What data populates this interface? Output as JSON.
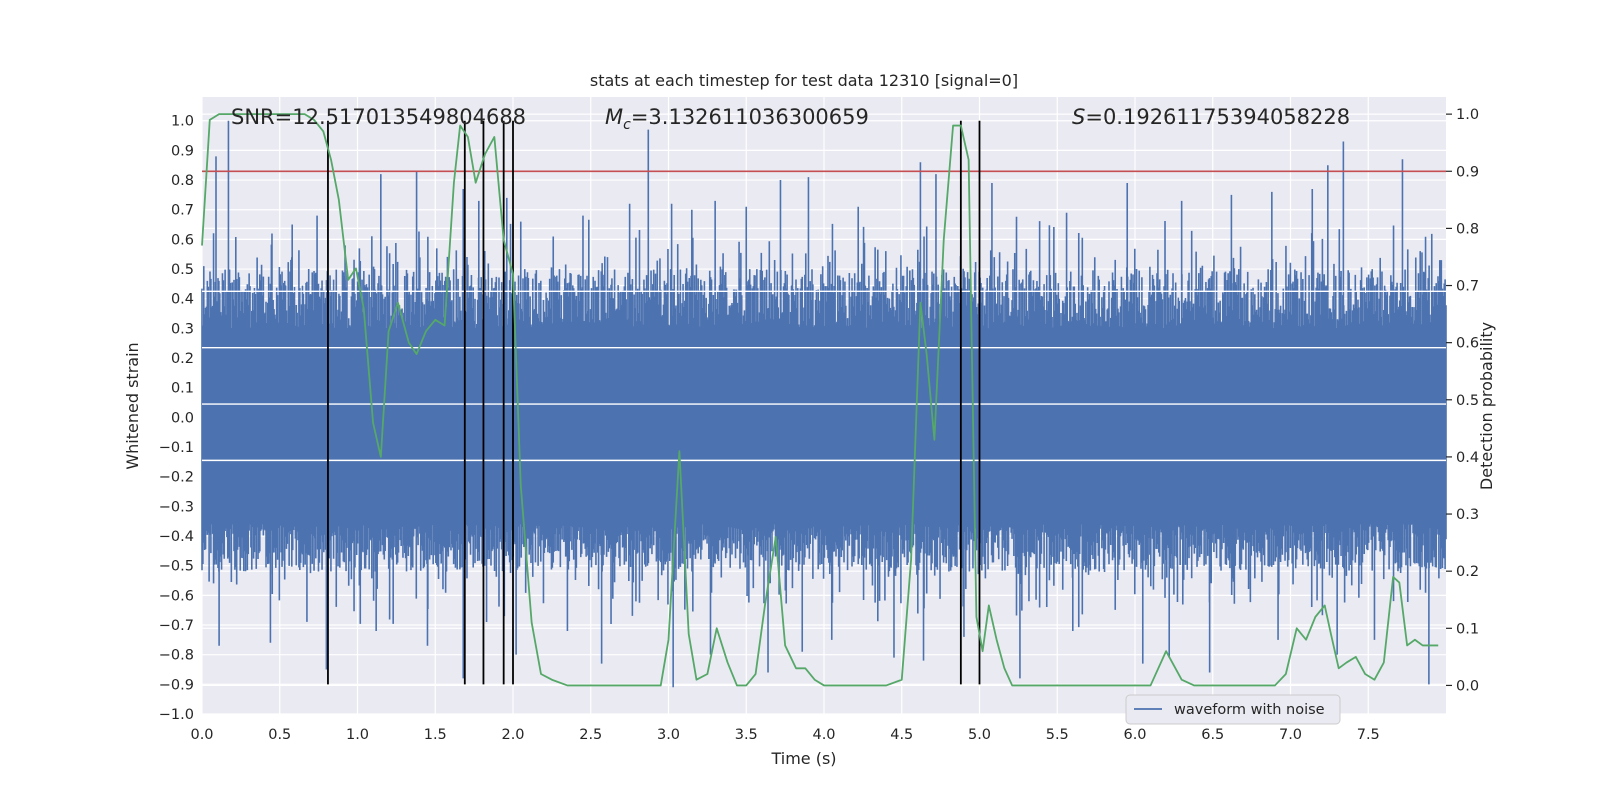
{
  "chart_data": {
    "type": "line",
    "title": "stats at each timestep for test data 12310 [signal=0]",
    "xlabel": "Time (s)",
    "ylabel_left": "Whitened strain",
    "ylabel_right": "Detection probability",
    "xlim": [
      0,
      8
    ],
    "ylim_left": [
      -1.0,
      1.08
    ],
    "ylim_right": [
      -0.05,
      1.03
    ],
    "xticks": [
      0.0,
      0.5,
      1.0,
      1.5,
      2.0,
      2.5,
      3.0,
      3.5,
      4.0,
      4.5,
      5.0,
      5.5,
      6.0,
      6.5,
      7.0,
      7.5
    ],
    "xtick_labels": [
      "0.0",
      "0.5",
      "1.0",
      "1.5",
      "2.0",
      "2.5",
      "3.0",
      "3.5",
      "4.0",
      "4.5",
      "5.0",
      "5.5",
      "6.0",
      "6.5",
      "7.0",
      "7.5"
    ],
    "yticks_left": [
      1.0,
      0.9,
      0.8,
      0.7,
      0.6,
      0.5,
      0.4,
      0.3,
      0.2,
      0.1,
      0.0,
      -0.1,
      -0.2,
      -0.3,
      -0.4,
      -0.5,
      -0.6,
      -0.7,
      -0.8,
      -0.9,
      -1.0
    ],
    "ytick_labels_left": [
      "1.0",
      "0.9",
      "0.8",
      "0.7",
      "0.6",
      "0.5",
      "0.4",
      "0.3",
      "0.2",
      "0.1",
      "0.0",
      "−0.1",
      "−0.2",
      "−0.3",
      "−0.4",
      "−0.5",
      "−0.6",
      "−0.7",
      "−0.8",
      "−0.9",
      "−1.0"
    ],
    "yticks_right": [
      1.0,
      0.9,
      0.8,
      0.7,
      0.6,
      0.5,
      0.4,
      0.3,
      0.2,
      0.1,
      0.0
    ],
    "ytick_labels_right": [
      "1.0",
      "0.9",
      "0.8",
      "0.7",
      "0.6",
      "0.5",
      "0.4",
      "0.3",
      "0.2",
      "0.1",
      "0.0"
    ],
    "annotations": {
      "snr": "SNR=12.517013549804688",
      "mc_symbol": "M",
      "mc_sub": "c",
      "mc_value": "=3.132611036300659",
      "s_symbol": "S",
      "s_value": "=0.19261175394058228"
    },
    "threshold": {
      "value": 0.9,
      "axis": "right"
    },
    "vlines": {
      "x": [
        0.81,
        1.69,
        1.81,
        1.94,
        2.0,
        4.88,
        5.0
      ],
      "ymin": -0.9,
      "ymax": 1.0
    },
    "legend": {
      "label": "waveform with noise",
      "location": "lower center"
    },
    "series": [
      {
        "name": "waveform with noise",
        "axis": "left",
        "color": "#4c72b0",
        "spikes": {
          "pos": [
            [
              0.09,
              0.88
            ],
            [
              0.17,
              1.0
            ],
            [
              0.45,
              0.62
            ],
            [
              0.58,
              0.65
            ],
            [
              0.74,
              0.68
            ],
            [
              0.92,
              0.58
            ],
            [
              1.15,
              0.82
            ],
            [
              1.38,
              0.83
            ],
            [
              1.68,
              0.77
            ],
            [
              1.78,
              0.73
            ],
            [
              1.96,
              0.74
            ],
            [
              2.05,
              0.66
            ],
            [
              2.45,
              0.68
            ],
            [
              2.75,
              0.72
            ],
            [
              2.87,
              0.97
            ],
            [
              3.02,
              0.72
            ],
            [
              3.15,
              0.7
            ],
            [
              3.3,
              0.73
            ],
            [
              3.5,
              0.71
            ],
            [
              3.72,
              0.8
            ],
            [
              3.9,
              0.81
            ],
            [
              4.22,
              0.71
            ],
            [
              4.62,
              0.86
            ],
            [
              4.72,
              0.82
            ],
            [
              5.08,
              0.79
            ],
            [
              5.56,
              0.69
            ],
            [
              5.95,
              0.79
            ],
            [
              6.3,
              0.73
            ],
            [
              6.62,
              0.75
            ],
            [
              6.88,
              0.76
            ],
            [
              7.14,
              0.77
            ],
            [
              7.24,
              0.85
            ],
            [
              7.34,
              0.93
            ],
            [
              7.72,
              0.87
            ],
            [
              7.97,
              0.53
            ]
          ],
          "neg": [
            [
              0.11,
              -0.77
            ],
            [
              0.44,
              -0.76
            ],
            [
              0.8,
              -0.85
            ],
            [
              1.12,
              -0.72
            ],
            [
              1.45,
              -0.77
            ],
            [
              1.68,
              -0.88
            ],
            [
              1.83,
              -0.69
            ],
            [
              2.02,
              -0.8
            ],
            [
              2.35,
              -0.72
            ],
            [
              2.57,
              -0.83
            ],
            [
              3.03,
              -0.91
            ],
            [
              3.27,
              -0.8
            ],
            [
              3.64,
              -0.86
            ],
            [
              3.86,
              -0.79
            ],
            [
              4.05,
              -0.75
            ],
            [
              4.45,
              -0.81
            ],
            [
              4.64,
              -0.82
            ],
            [
              4.9,
              -0.74
            ],
            [
              5.26,
              -0.88
            ],
            [
              5.6,
              -0.72
            ],
            [
              6.05,
              -0.83
            ],
            [
              6.22,
              -0.81
            ],
            [
              6.48,
              -0.86
            ],
            [
              6.92,
              -0.75
            ],
            [
              7.3,
              -0.8
            ],
            [
              7.54,
              -0.75
            ],
            [
              7.89,
              -0.9
            ]
          ]
        }
      },
      {
        "name": "detection probability",
        "axis": "right",
        "color": "#55a868",
        "x": [
          0.0,
          0.05,
          0.11,
          0.2,
          0.3,
          0.4,
          0.5,
          0.6,
          0.66,
          0.72,
          0.78,
          0.83,
          0.88,
          0.94,
          0.99,
          1.04,
          1.1,
          1.15,
          1.2,
          1.26,
          1.33,
          1.38,
          1.44,
          1.5,
          1.56,
          1.62,
          1.66,
          1.71,
          1.76,
          1.82,
          1.88,
          1.94,
          2.0,
          2.05,
          2.12,
          2.18,
          2.25,
          2.35,
          2.45,
          2.55,
          2.65,
          2.75,
          2.85,
          2.95,
          3.0,
          3.07,
          3.13,
          3.18,
          3.25,
          3.31,
          3.38,
          3.44,
          3.5,
          3.56,
          3.62,
          3.69,
          3.75,
          3.82,
          3.88,
          3.94,
          4.0,
          4.06,
          4.13,
          4.2,
          4.3,
          4.4,
          4.5,
          4.56,
          4.62,
          4.66,
          4.71,
          4.77,
          4.83,
          4.88,
          4.93,
          4.98,
          5.02,
          5.06,
          5.11,
          5.16,
          5.21,
          5.26,
          5.31,
          5.37,
          5.45,
          5.55,
          5.7,
          5.85,
          6.0,
          6.1,
          6.2,
          6.3,
          6.38,
          6.45,
          6.5,
          6.56,
          6.62,
          6.7,
          6.8,
          6.9,
          6.97,
          7.04,
          7.1,
          7.16,
          7.22,
          7.26,
          7.31,
          7.36,
          7.42,
          7.48,
          7.54,
          7.6,
          7.66,
          7.7,
          7.75,
          7.8,
          7.85,
          7.9,
          7.95
        ],
        "y": [
          0.77,
          0.99,
          1.0,
          1.0,
          1.0,
          1.0,
          1.0,
          1.0,
          1.0,
          0.99,
          0.97,
          0.92,
          0.85,
          0.71,
          0.73,
          0.66,
          0.46,
          0.4,
          0.62,
          0.67,
          0.6,
          0.58,
          0.62,
          0.64,
          0.63,
          0.88,
          0.98,
          0.96,
          0.88,
          0.93,
          0.96,
          0.78,
          0.72,
          0.35,
          0.11,
          0.02,
          0.01,
          0.0,
          0.0,
          0.0,
          0.0,
          0.0,
          0.0,
          0.0,
          0.08,
          0.41,
          0.09,
          0.01,
          0.02,
          0.1,
          0.04,
          0.0,
          0.0,
          0.02,
          0.14,
          0.26,
          0.07,
          0.03,
          0.03,
          0.01,
          0.0,
          0.0,
          0.0,
          0.0,
          0.0,
          0.0,
          0.01,
          0.22,
          0.67,
          0.58,
          0.43,
          0.78,
          0.98,
          0.98,
          0.92,
          0.12,
          0.06,
          0.14,
          0.08,
          0.03,
          0.0,
          0.0,
          0.0,
          0.0,
          0.0,
          0.0,
          0.0,
          0.0,
          0.0,
          0.0,
          0.06,
          0.01,
          0.0,
          0.0,
          0.0,
          0.0,
          0.0,
          0.0,
          0.0,
          0.0,
          0.02,
          0.1,
          0.08,
          0.12,
          0.14,
          0.09,
          0.03,
          0.04,
          0.05,
          0.02,
          0.01,
          0.04,
          0.19,
          0.18,
          0.07,
          0.08,
          0.07,
          0.07,
          0.07
        ]
      }
    ]
  }
}
